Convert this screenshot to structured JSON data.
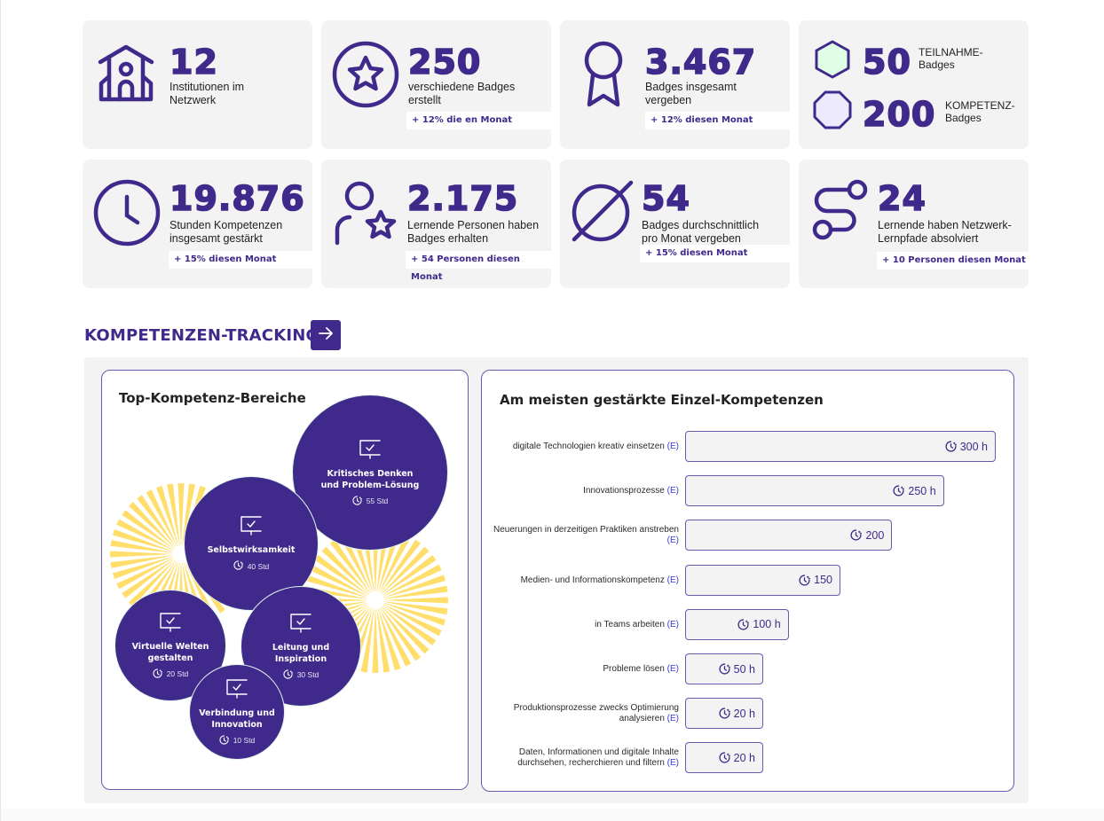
{
  "colors": {
    "primary": "#3f2a8b",
    "card_bg": "#f3f3f3",
    "sunburst": "#ffde6b",
    "teilnahme_badge": "#e0fde5",
    "kompetenz_badge": "#eceafc",
    "link_e": "#3b3bd6"
  },
  "stats": [
    {
      "icon": "school-building-icon",
      "value": "12",
      "label": "Institutionen im Netzwerk",
      "trend": null
    },
    {
      "icon": "star-circle-icon",
      "value": "250",
      "label": "verschiedene Badges erstellt",
      "trend": "+ 12% die en Monat"
    },
    {
      "icon": "award-ribbon-icon",
      "value": "3.467",
      "label": "Badges insgesamt vergeben",
      "trend": "+ 12% diesen Monat"
    },
    {
      "icon": "clock-icon",
      "value": "19.876",
      "label": "Stunden Kompetenzen insgesamt gestärkt",
      "trend": "+ 15% diesen Monat"
    },
    {
      "icon": "person-star-icon",
      "value": "2.175",
      "label": "Lernende Personen haben Badges erhalten",
      "trend": "+ 54 Personen diesen Monat"
    },
    {
      "icon": "average-diameter-icon",
      "value": "54",
      "label": "Badges durchschnittlich pro Monat vergeben",
      "trend": "+ 15% diesen Monat"
    },
    {
      "icon": "learning-path-icon",
      "value": "24",
      "label": "Lernende haben Netzwerk-Lernpfade absolviert",
      "trend": "+ 10 Personen diesen Monat"
    }
  ],
  "badge_types": [
    {
      "icon": "hexagon-icon",
      "value": "50",
      "label_line1": "TEILNAHME-",
      "label_line2": "Badges"
    },
    {
      "icon": "octagon-icon",
      "value": "200",
      "label_line1": "KOMPETENZ-",
      "label_line2": "Badges"
    }
  ],
  "section": {
    "title": "KOMPETENZEN-TRACKING",
    "button_icon": "arrow-right-icon"
  },
  "top_areas": {
    "title": "Top-Kompetenz-Bereiche",
    "items": [
      {
        "name": "Kritisches Denken und Problem-Lösung",
        "hours": "55 Std"
      },
      {
        "name": "Selbstwirksamkeit",
        "hours": "40 Std"
      },
      {
        "name": "Leitung und Inspiration",
        "hours": "30 Std"
      },
      {
        "name": "Virtuelle Welten gestalten",
        "hours": "20 Std"
      },
      {
        "name": "Verbindung und Innovation",
        "hours": "10 Std"
      }
    ]
  },
  "single_competencies": {
    "title": "Am meisten gestärkte Einzel-Kompetenzen",
    "e_marker": "(E)",
    "max_hours": 300,
    "items": [
      {
        "label": "digitale Technologien kreativ einsetzen",
        "hours": 300,
        "display": "300 h"
      },
      {
        "label": "Innovationsprozesse",
        "hours": 250,
        "display": "250 h"
      },
      {
        "label": "Neuerungen in derzeitigen Praktiken anstreben",
        "hours": 200,
        "display": "200"
      },
      {
        "label": "Medien- und Informationskompetenz",
        "hours": 150,
        "display": "150"
      },
      {
        "label": "in Teams arbeiten",
        "hours": 100,
        "display": "100 h"
      },
      {
        "label": "Probleme lösen",
        "hours": 50,
        "display": "50 h"
      },
      {
        "label": "Produktionsprozesse zwecks Optimierung analysieren",
        "hours": 20,
        "display": "20 h"
      },
      {
        "label": "Daten, Informationen und digitale Inhalte durchsehen, recherchieren und filtern",
        "hours": 20,
        "display": "20 h"
      }
    ]
  }
}
